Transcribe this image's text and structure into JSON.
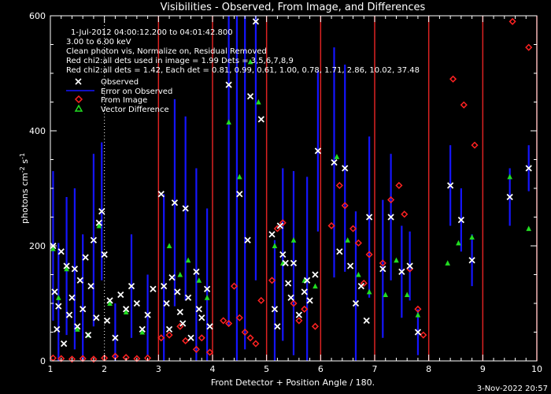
{
  "chart_data": {
    "type": "scatter",
    "title": "Visibilities - Observed, From Image, and Differences",
    "xlabel": "Front Detector + Position Angle / 180.",
    "ylabel_main": "photons cm",
    "ylabel_exp1": "-2",
    "ylabel_mid": " s",
    "ylabel_exp2": "-1",
    "xlim": [
      1,
      10
    ],
    "ylim": [
      0,
      600
    ],
    "xticks": [
      "1",
      "2",
      "3",
      "4",
      "5",
      "6",
      "7",
      "8",
      "9",
      "10"
    ],
    "yticks": [
      "0",
      "200",
      "400",
      "600"
    ],
    "footer": "3-Nov-2022 20:57",
    "info_lines": [
      "1-Jul-2012 04:00:12.200 to 04:01:42.800",
      "3.00 to 6.00 keV",
      "Clean photon vis,   Normalize on, Residual Removed",
      "Red chi2:all dets used in image = 1.99  Dets = 3,5,6,7,8,9",
      "Red chi2:all dets = 1.42,  Each det = 0.81, 0.99, 0.61, 1.00, 0.78, 1.71, 2.86, 10.02, 37.48"
    ],
    "legend": {
      "position": "top-left",
      "entries": [
        "Observed",
        "Error on Observed",
        "From Image",
        "Vector Difference"
      ]
    },
    "detector_dividers": [
      3,
      4,
      5,
      6,
      7,
      8,
      9,
      10
    ],
    "dotted_divider": 2,
    "observed": [
      [
        1.05,
        200
      ],
      [
        1.08,
        120
      ],
      [
        1.12,
        55
      ],
      [
        1.15,
        95
      ],
      [
        1.2,
        190
      ],
      [
        1.25,
        30
      ],
      [
        1.3,
        165
      ],
      [
        1.35,
        80
      ],
      [
        1.4,
        110
      ],
      [
        1.45,
        160
      ],
      [
        1.5,
        60
      ],
      [
        1.55,
        140
      ],
      [
        1.6,
        90
      ],
      [
        1.65,
        180
      ],
      [
        1.7,
        45
      ],
      [
        1.75,
        130
      ],
      [
        1.8,
        210
      ],
      [
        1.85,
        75
      ],
      [
        1.9,
        240
      ],
      [
        1.95,
        260
      ],
      [
        2.0,
        185
      ],
      [
        2.05,
        70
      ],
      [
        2.1,
        105
      ],
      [
        2.2,
        40
      ],
      [
        2.3,
        115
      ],
      [
        2.4,
        90
      ],
      [
        2.5,
        130
      ],
      [
        2.6,
        100
      ],
      [
        2.7,
        55
      ],
      [
        2.8,
        80
      ],
      [
        2.9,
        125
      ],
      [
        3.05,
        290
      ],
      [
        3.1,
        130
      ],
      [
        3.15,
        100
      ],
      [
        3.2,
        55
      ],
      [
        3.25,
        145
      ],
      [
        3.3,
        275
      ],
      [
        3.35,
        120
      ],
      [
        3.4,
        85
      ],
      [
        3.45,
        65
      ],
      [
        3.5,
        265
      ],
      [
        3.55,
        110
      ],
      [
        3.6,
        40
      ],
      [
        3.7,
        155
      ],
      [
        3.75,
        90
      ],
      [
        3.8,
        75
      ],
      [
        3.9,
        125
      ],
      [
        3.95,
        60
      ],
      [
        4.3,
        480
      ],
      [
        4.5,
        290
      ],
      [
        4.65,
        210
      ],
      [
        4.7,
        460
      ],
      [
        4.8,
        590
      ],
      [
        4.9,
        420
      ],
      [
        5.1,
        220
      ],
      [
        5.15,
        90
      ],
      [
        5.2,
        60
      ],
      [
        5.25,
        235
      ],
      [
        5.3,
        185
      ],
      [
        5.35,
        170
      ],
      [
        5.4,
        135
      ],
      [
        5.45,
        110
      ],
      [
        5.5,
        170
      ],
      [
        5.6,
        80
      ],
      [
        5.7,
        120
      ],
      [
        5.75,
        140
      ],
      [
        5.8,
        105
      ],
      [
        5.9,
        150
      ],
      [
        5.95,
        365
      ],
      [
        6.25,
        345
      ],
      [
        6.35,
        190
      ],
      [
        6.45,
        335
      ],
      [
        6.55,
        165
      ],
      [
        6.65,
        100
      ],
      [
        6.75,
        130
      ],
      [
        6.85,
        70
      ],
      [
        6.9,
        250
      ],
      [
        7.15,
        160
      ],
      [
        7.3,
        250
      ],
      [
        7.5,
        155
      ],
      [
        7.65,
        165
      ],
      [
        7.8,
        50
      ],
      [
        8.4,
        305
      ],
      [
        8.6,
        245
      ],
      [
        8.8,
        175
      ],
      [
        9.5,
        285
      ],
      [
        9.85,
        335
      ]
    ],
    "observed_error": [
      [
        1.05,
        200,
        130
      ],
      [
        1.15,
        95,
        110
      ],
      [
        1.3,
        165,
        120
      ],
      [
        1.45,
        160,
        140
      ],
      [
        1.6,
        90,
        130
      ],
      [
        1.8,
        210,
        150
      ],
      [
        1.95,
        260,
        120
      ],
      [
        2.2,
        40,
        60
      ],
      [
        2.5,
        130,
        90
      ],
      [
        2.8,
        80,
        70
      ],
      [
        3.1,
        130,
        160
      ],
      [
        3.3,
        275,
        180
      ],
      [
        3.5,
        265,
        160
      ],
      [
        3.7,
        155,
        180
      ],
      [
        3.9,
        125,
        140
      ],
      [
        4.3,
        480,
        420
      ],
      [
        4.45,
        350,
        380
      ],
      [
        4.6,
        420,
        400
      ],
      [
        4.8,
        590,
        450
      ],
      [
        5.15,
        90,
        120
      ],
      [
        5.3,
        185,
        150
      ],
      [
        5.5,
        170,
        160
      ],
      [
        5.75,
        140,
        180
      ],
      [
        5.95,
        365,
        140
      ],
      [
        6.25,
        345,
        200
      ],
      [
        6.45,
        335,
        180
      ],
      [
        6.65,
        100,
        160
      ],
      [
        6.9,
        250,
        140
      ],
      [
        7.15,
        160,
        120
      ],
      [
        7.3,
        250,
        110
      ],
      [
        7.5,
        155,
        80
      ],
      [
        7.65,
        165,
        60
      ],
      [
        7.8,
        50,
        40
      ],
      [
        8.4,
        305,
        70
      ],
      [
        8.6,
        245,
        55
      ],
      [
        8.8,
        175,
        45
      ],
      [
        9.5,
        285,
        50
      ],
      [
        9.85,
        335,
        40
      ]
    ],
    "from_image": [
      [
        1.05,
        5
      ],
      [
        1.2,
        4
      ],
      [
        1.4,
        3
      ],
      [
        1.6,
        4
      ],
      [
        1.8,
        3
      ],
      [
        2.0,
        5
      ],
      [
        2.2,
        8
      ],
      [
        2.4,
        6
      ],
      [
        2.6,
        4
      ],
      [
        2.8,
        5
      ],
      [
        3.05,
        40
      ],
      [
        3.2,
        45
      ],
      [
        3.4,
        60
      ],
      [
        3.5,
        35
      ],
      [
        3.7,
        20
      ],
      [
        3.8,
        40
      ],
      [
        3.95,
        15
      ],
      [
        4.2,
        70
      ],
      [
        4.3,
        65
      ],
      [
        4.4,
        130
      ],
      [
        4.5,
        75
      ],
      [
        4.6,
        50
      ],
      [
        4.7,
        40
      ],
      [
        4.8,
        30
      ],
      [
        4.9,
        105
      ],
      [
        5.1,
        140
      ],
      [
        5.2,
        230
      ],
      [
        5.3,
        240
      ],
      [
        5.5,
        100
      ],
      [
        5.6,
        70
      ],
      [
        5.7,
        90
      ],
      [
        5.9,
        60
      ],
      [
        6.2,
        235
      ],
      [
        6.35,
        305
      ],
      [
        6.45,
        270
      ],
      [
        6.6,
        230
      ],
      [
        6.7,
        205
      ],
      [
        6.8,
        135
      ],
      [
        6.9,
        185
      ],
      [
        7.15,
        170
      ],
      [
        7.3,
        280
      ],
      [
        7.45,
        305
      ],
      [
        7.55,
        255
      ],
      [
        7.65,
        160
      ],
      [
        7.8,
        90
      ],
      [
        7.9,
        45
      ],
      [
        8.45,
        490
      ],
      [
        8.65,
        445
      ],
      [
        8.85,
        375
      ],
      [
        9.55,
        590
      ],
      [
        9.85,
        545
      ]
    ],
    "vector_difference": [
      [
        1.05,
        195
      ],
      [
        1.15,
        110
      ],
      [
        1.3,
        160
      ],
      [
        1.5,
        55
      ],
      [
        1.7,
        45
      ],
      [
        1.9,
        235
      ],
      [
        2.1,
        100
      ],
      [
        2.4,
        85
      ],
      [
        2.7,
        50
      ],
      [
        3.2,
        200
      ],
      [
        3.4,
        150
      ],
      [
        3.55,
        175
      ],
      [
        3.75,
        140
      ],
      [
        3.9,
        110
      ],
      [
        4.3,
        415
      ],
      [
        4.5,
        320
      ],
      [
        4.7,
        520
      ],
      [
        4.85,
        450
      ],
      [
        5.15,
        200
      ],
      [
        5.3,
        170
      ],
      [
        5.5,
        210
      ],
      [
        5.7,
        140
      ],
      [
        5.9,
        130
      ],
      [
        6.3,
        355
      ],
      [
        6.5,
        210
      ],
      [
        6.7,
        150
      ],
      [
        6.9,
        120
      ],
      [
        7.2,
        115
      ],
      [
        7.4,
        175
      ],
      [
        7.6,
        115
      ],
      [
        7.8,
        80
      ],
      [
        8.35,
        170
      ],
      [
        8.55,
        205
      ],
      [
        8.8,
        215
      ],
      [
        9.5,
        320
      ],
      [
        9.85,
        230
      ]
    ],
    "colors": {
      "background": "#000000",
      "axes": "#ffffff",
      "observed": "#ffffff",
      "error": "#1515ff",
      "from_image": "#ff2222",
      "difference": "#22dd22",
      "divider": "#dd2222"
    }
  }
}
